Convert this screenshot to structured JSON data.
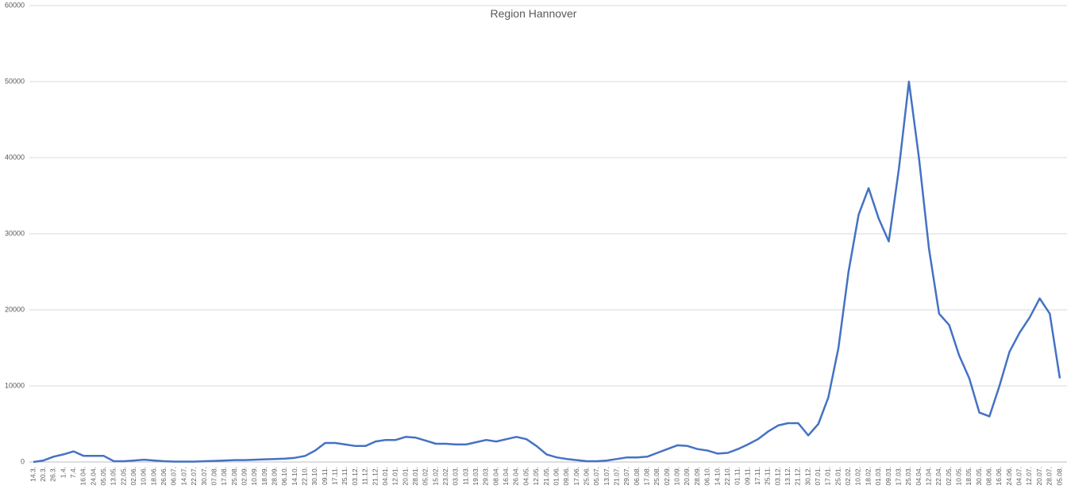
{
  "chart_data": {
    "type": "line",
    "title": "Region Hannover",
    "categories": [
      "14.3.",
      "20.3.",
      "26.3.",
      "1.4.",
      "7.4.",
      "16.04.",
      "24.04.",
      "05.05.",
      "13.05.",
      "22.05.",
      "02.06.",
      "10.06.",
      "18.06.",
      "26.06.",
      "06.07.",
      "14.07.",
      "22.07.",
      "30.07.",
      "07.08.",
      "17.08.",
      "25.08.",
      "02.09.",
      "10.09.",
      "18.09.",
      "28.09.",
      "06.10.",
      "14.10.",
      "22.10.",
      "30.10.",
      "09.11.",
      "17.11.",
      "25.11.",
      "03.12.",
      "11.12.",
      "21.12.",
      "04.01.",
      "12.01.",
      "20.01.",
      "28.01.",
      "05.02.",
      "15.02.",
      "23.02.",
      "03.03.",
      "11.03.",
      "19.03.",
      "29.03.",
      "08.04.",
      "16.04.",
      "26.04.",
      "04.05.",
      "12.05.",
      "21.05.",
      "01.06.",
      "09.06.",
      "17.06.",
      "25.06.",
      "05.07.",
      "13.07.",
      "21.07.",
      "29.07.",
      "06.08.",
      "17.08.",
      "25.08.",
      "02.09.",
      "10.09.",
      "20.09.",
      "28.09.",
      "06.10.",
      "14.10.",
      "22.10.",
      "01.11.",
      "09.11.",
      "17.11.",
      "25.11.",
      "03.12.",
      "13.12.",
      "21.12.",
      "30.12.",
      "07.01.",
      "17.01.",
      "25.01.",
      "02.02.",
      "10.02.",
      "18.02.",
      "01.03.",
      "09.03.",
      "17.03.",
      "25.03.",
      "04.04.",
      "12.04.",
      "22.04.",
      "02.05.",
      "10.05.",
      "18.05.",
      "30.05.",
      "08.06.",
      "16.06.",
      "24.06.",
      "04.07.",
      "12.07.",
      "20.07.",
      "28.07.",
      "05.08."
    ],
    "series": [
      {
        "color": "#4472c4",
        "values": [
          0,
          200,
          700,
          1000,
          1400,
          800,
          800,
          800,
          100,
          100,
          200,
          300,
          200,
          100,
          50,
          50,
          50,
          100,
          150,
          200,
          250,
          250,
          300,
          350,
          400,
          450,
          550,
          800,
          1500,
          2500,
          2500,
          2300,
          2100,
          2100,
          2700,
          2900,
          2900,
          3300,
          3200,
          2800,
          2400,
          2400,
          2300,
          2300,
          2600,
          2900,
          2700,
          3000,
          3300,
          3000,
          2100,
          1000,
          600,
          400,
          250,
          100,
          100,
          200,
          400,
          600,
          600,
          700,
          1200,
          1700,
          2200,
          2100,
          1700,
          1500,
          1100,
          1200,
          1700,
          2300,
          3000,
          4000,
          4800,
          5100,
          5100,
          3500,
          5000,
          8500,
          15000,
          25000,
          32500,
          36000,
          32000,
          29000,
          38500,
          50000,
          40000,
          28000,
          19500,
          18000,
          14000,
          11000,
          6500,
          6000,
          10000,
          14500,
          17000,
          19000,
          21500,
          19500,
          11000
        ]
      }
    ],
    "ylim": [
      0,
      60000
    ],
    "yticks": [
      0,
      10000,
      20000,
      30000,
      40000,
      50000,
      60000
    ],
    "grid": true
  }
}
